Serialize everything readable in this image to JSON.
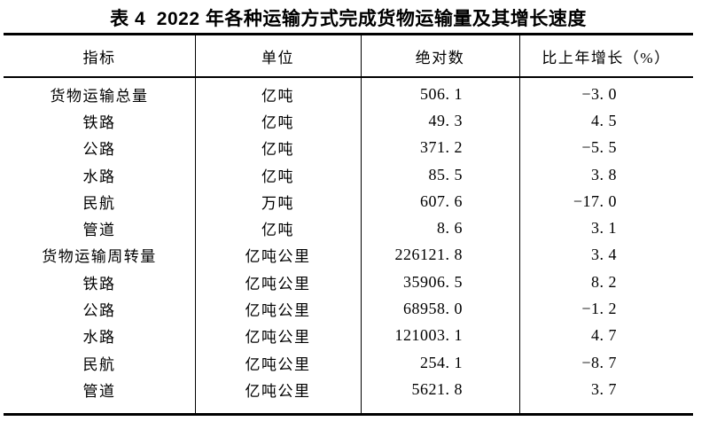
{
  "page": {
    "colors": {
      "background": "#ffffff",
      "text": "#000000",
      "rule": "#000000"
    }
  },
  "title": "表 4  2022 年各种运输方式完成货物运输量及其增长速度",
  "table": {
    "headers": [
      "指标",
      "单位",
      "绝对数",
      "比上年增长（%）"
    ],
    "rows": [
      {
        "indicator": "货物运输总量",
        "unit": "亿吨",
        "value": "506.1",
        "growth": "-3.0"
      },
      {
        "indicator": "铁路",
        "unit": "亿吨",
        "value": "49.3",
        "growth": "4.5"
      },
      {
        "indicator": "公路",
        "unit": "亿吨",
        "value": "371.2",
        "growth": "-5.5"
      },
      {
        "indicator": "水路",
        "unit": "亿吨",
        "value": "85.5",
        "growth": "3.8"
      },
      {
        "indicator": "民航",
        "unit": "万吨",
        "value": "607.6",
        "growth": "-17.0"
      },
      {
        "indicator": "管道",
        "unit": "亿吨",
        "value": "8.6",
        "growth": "3.1"
      },
      {
        "indicator": "货物运输周转量",
        "unit": "亿吨公里",
        "value": "226121.8",
        "growth": "3.4"
      },
      {
        "indicator": "铁路",
        "unit": "亿吨公里",
        "value": "35906.5",
        "growth": "8.2"
      },
      {
        "indicator": "公路",
        "unit": "亿吨公里",
        "value": "68958.0",
        "growth": "-1.2"
      },
      {
        "indicator": "水路",
        "unit": "亿吨公里",
        "value": "121003.1",
        "growth": "4.7"
      },
      {
        "indicator": "民航",
        "unit": "亿吨公里",
        "value": "254.1",
        "growth": "-8.7"
      },
      {
        "indicator": "管道",
        "unit": "亿吨公里",
        "value": "5621.8",
        "growth": "3.7"
      }
    ]
  }
}
